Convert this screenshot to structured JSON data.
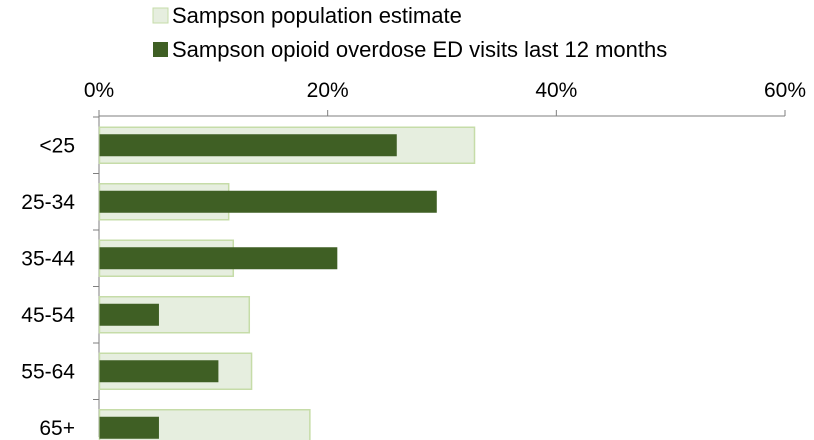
{
  "chart_data": {
    "type": "bar",
    "orientation": "horizontal",
    "categories": [
      "<25",
      "25-34",
      "35-44",
      "45-54",
      "55-64",
      "65+"
    ],
    "series": [
      {
        "name": "Sampson population estimate",
        "values": [
          32.8,
          11.3,
          11.7,
          13.1,
          13.3,
          18.4
        ],
        "color": "#e6eedf",
        "border_color": "#c6dca8"
      },
      {
        "name": "Sampson opioid overdose ED visits last 12 months",
        "values": [
          26.0,
          29.5,
          20.8,
          5.2,
          10.4,
          5.2
        ],
        "color": "#3f5f24"
      }
    ],
    "xlim": [
      0,
      60
    ],
    "x_ticks": [
      "0%",
      "20%",
      "40%",
      "60%"
    ],
    "x_tick_values": [
      0,
      20,
      40,
      60
    ],
    "x_axis_position": "top",
    "legend_placement": "top",
    "grid": false,
    "title": "",
    "xlabel": "",
    "ylabel": ""
  }
}
